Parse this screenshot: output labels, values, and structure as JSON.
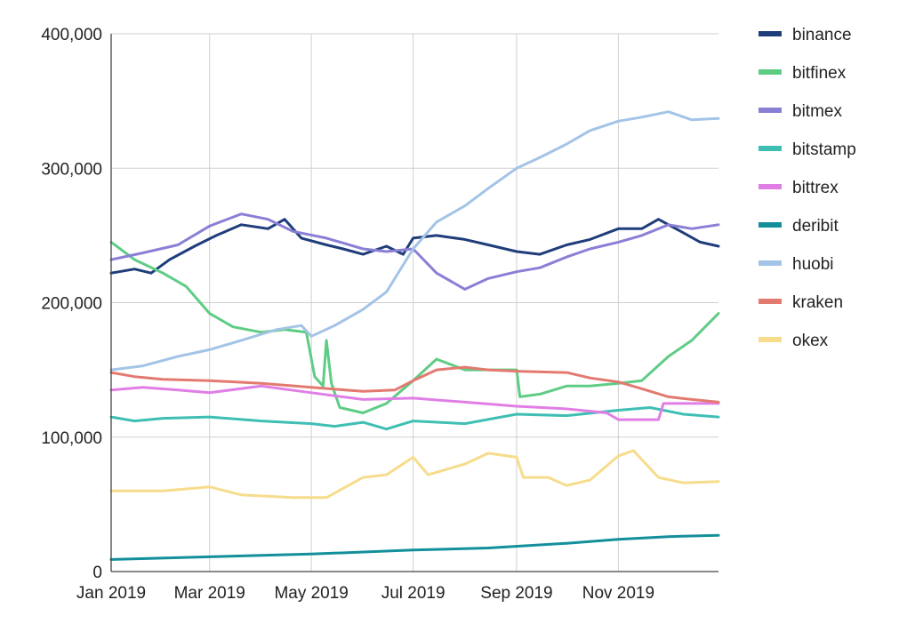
{
  "chart_data": {
    "type": "line",
    "title": "",
    "xlabel": "",
    "ylabel": "",
    "x_range": [
      "2019-01-01",
      "2019-12-31"
    ],
    "ylim": [
      0,
      400000
    ],
    "grid": true,
    "legend_position": "right",
    "x_ticks": [
      {
        "date": "2019-01-01",
        "label": "Jan 2019"
      },
      {
        "date": "2019-03-01",
        "label": "Mar 2019"
      },
      {
        "date": "2019-05-01",
        "label": "May 2019"
      },
      {
        "date": "2019-07-01",
        "label": "Jul 2019"
      },
      {
        "date": "2019-09-01",
        "label": "Sep 2019"
      },
      {
        "date": "2019-11-01",
        "label": "Nov 2019"
      }
    ],
    "y_ticks": [
      {
        "value": 0,
        "label": "0"
      },
      {
        "value": 100000,
        "label": "100,000"
      },
      {
        "value": 200000,
        "label": "200,000"
      },
      {
        "value": 300000,
        "label": "300,000"
      },
      {
        "value": 400000,
        "label": "400,000"
      }
    ],
    "series": [
      {
        "name": "binance",
        "color": "#1f3d7a",
        "points": [
          [
            "2019-01-01",
            222000
          ],
          [
            "2019-01-15",
            225000
          ],
          [
            "2019-01-25",
            222000
          ],
          [
            "2019-02-05",
            232000
          ],
          [
            "2019-02-20",
            242000
          ],
          [
            "2019-03-05",
            250000
          ],
          [
            "2019-03-20",
            258000
          ],
          [
            "2019-04-05",
            255000
          ],
          [
            "2019-04-15",
            262000
          ],
          [
            "2019-04-25",
            248000
          ],
          [
            "2019-05-10",
            243000
          ],
          [
            "2019-05-20",
            240000
          ],
          [
            "2019-06-01",
            236000
          ],
          [
            "2019-06-15",
            242000
          ],
          [
            "2019-06-25",
            236000
          ],
          [
            "2019-07-01",
            248000
          ],
          [
            "2019-07-15",
            250000
          ],
          [
            "2019-08-01",
            247000
          ],
          [
            "2019-08-15",
            243000
          ],
          [
            "2019-09-01",
            238000
          ],
          [
            "2019-09-15",
            236000
          ],
          [
            "2019-10-01",
            243000
          ],
          [
            "2019-10-15",
            247000
          ],
          [
            "2019-11-01",
            255000
          ],
          [
            "2019-11-15",
            255000
          ],
          [
            "2019-11-25",
            262000
          ],
          [
            "2019-12-10",
            252000
          ],
          [
            "2019-12-20",
            245000
          ],
          [
            "2019-12-31",
            242000
          ]
        ]
      },
      {
        "name": "bitfinex",
        "color": "#5fcc85",
        "points": [
          [
            "2019-01-01",
            245000
          ],
          [
            "2019-01-15",
            232000
          ],
          [
            "2019-02-01",
            222000
          ],
          [
            "2019-02-15",
            212000
          ],
          [
            "2019-03-01",
            192000
          ],
          [
            "2019-03-15",
            182000
          ],
          [
            "2019-04-01",
            178000
          ],
          [
            "2019-04-15",
            180000
          ],
          [
            "2019-04-28",
            178000
          ],
          [
            "2019-05-03",
            145000
          ],
          [
            "2019-05-08",
            138000
          ],
          [
            "2019-05-10",
            172000
          ],
          [
            "2019-05-13",
            140000
          ],
          [
            "2019-05-18",
            122000
          ],
          [
            "2019-06-01",
            118000
          ],
          [
            "2019-06-15",
            125000
          ],
          [
            "2019-07-01",
            142000
          ],
          [
            "2019-07-15",
            158000
          ],
          [
            "2019-08-01",
            150000
          ],
          [
            "2019-08-15",
            150000
          ],
          [
            "2019-09-01",
            150000
          ],
          [
            "2019-09-03",
            130000
          ],
          [
            "2019-09-15",
            132000
          ],
          [
            "2019-10-01",
            138000
          ],
          [
            "2019-10-15",
            138000
          ],
          [
            "2019-11-01",
            140000
          ],
          [
            "2019-11-15",
            142000
          ],
          [
            "2019-12-01",
            160000
          ],
          [
            "2019-12-15",
            172000
          ],
          [
            "2019-12-31",
            192000
          ]
        ]
      },
      {
        "name": "bitmex",
        "color": "#8a7fd6",
        "points": [
          [
            "2019-01-01",
            232000
          ],
          [
            "2019-01-20",
            237000
          ],
          [
            "2019-02-10",
            243000
          ],
          [
            "2019-03-01",
            257000
          ],
          [
            "2019-03-20",
            266000
          ],
          [
            "2019-04-05",
            262000
          ],
          [
            "2019-04-20",
            253000
          ],
          [
            "2019-05-10",
            248000
          ],
          [
            "2019-06-01",
            240000
          ],
          [
            "2019-06-15",
            238000
          ],
          [
            "2019-07-01",
            240000
          ],
          [
            "2019-07-15",
            222000
          ],
          [
            "2019-08-01",
            210000
          ],
          [
            "2019-08-15",
            218000
          ],
          [
            "2019-09-01",
            223000
          ],
          [
            "2019-09-15",
            226000
          ],
          [
            "2019-10-01",
            234000
          ],
          [
            "2019-10-15",
            240000
          ],
          [
            "2019-11-01",
            245000
          ],
          [
            "2019-11-15",
            250000
          ],
          [
            "2019-12-01",
            258000
          ],
          [
            "2019-12-15",
            255000
          ],
          [
            "2019-12-31",
            258000
          ]
        ]
      },
      {
        "name": "bitstamp",
        "color": "#3fbfb4",
        "points": [
          [
            "2019-01-01",
            115000
          ],
          [
            "2019-01-15",
            112000
          ],
          [
            "2019-02-01",
            114000
          ],
          [
            "2019-03-01",
            115000
          ],
          [
            "2019-04-01",
            112000
          ],
          [
            "2019-05-01",
            110000
          ],
          [
            "2019-05-15",
            108000
          ],
          [
            "2019-06-01",
            111000
          ],
          [
            "2019-06-15",
            106000
          ],
          [
            "2019-07-01",
            112000
          ],
          [
            "2019-08-01",
            110000
          ],
          [
            "2019-09-01",
            117000
          ],
          [
            "2019-10-01",
            116000
          ],
          [
            "2019-11-01",
            120000
          ],
          [
            "2019-11-20",
            122000
          ],
          [
            "2019-12-10",
            117000
          ],
          [
            "2019-12-31",
            115000
          ]
        ]
      },
      {
        "name": "bittrex",
        "color": "#e07ee6",
        "points": [
          [
            "2019-01-01",
            135000
          ],
          [
            "2019-01-20",
            137000
          ],
          [
            "2019-02-10",
            135000
          ],
          [
            "2019-03-01",
            133000
          ],
          [
            "2019-04-01",
            138000
          ],
          [
            "2019-05-01",
            133000
          ],
          [
            "2019-06-01",
            128000
          ],
          [
            "2019-07-01",
            129000
          ],
          [
            "2019-08-01",
            126000
          ],
          [
            "2019-09-01",
            123000
          ],
          [
            "2019-10-01",
            121000
          ],
          [
            "2019-10-25",
            118000
          ],
          [
            "2019-11-01",
            113000
          ],
          [
            "2019-11-25",
            113000
          ],
          [
            "2019-11-28",
            125000
          ],
          [
            "2019-12-31",
            125000
          ]
        ]
      },
      {
        "name": "deribit",
        "color": "#138f9c",
        "points": [
          [
            "2019-01-01",
            9000
          ],
          [
            "2019-03-01",
            11000
          ],
          [
            "2019-05-01",
            13000
          ],
          [
            "2019-07-01",
            16000
          ],
          [
            "2019-08-15",
            17500
          ],
          [
            "2019-10-01",
            21000
          ],
          [
            "2019-11-01",
            24000
          ],
          [
            "2019-12-01",
            26000
          ],
          [
            "2019-12-31",
            27000
          ]
        ]
      },
      {
        "name": "huobi",
        "color": "#a3c4e6",
        "points": [
          [
            "2019-01-01",
            150000
          ],
          [
            "2019-01-20",
            153000
          ],
          [
            "2019-02-10",
            160000
          ],
          [
            "2019-03-01",
            165000
          ],
          [
            "2019-03-20",
            172000
          ],
          [
            "2019-04-10",
            180000
          ],
          [
            "2019-04-25",
            183000
          ],
          [
            "2019-05-01",
            175000
          ],
          [
            "2019-05-15",
            183000
          ],
          [
            "2019-06-01",
            195000
          ],
          [
            "2019-06-15",
            208000
          ],
          [
            "2019-07-01",
            240000
          ],
          [
            "2019-07-15",
            260000
          ],
          [
            "2019-08-01",
            272000
          ],
          [
            "2019-08-15",
            285000
          ],
          [
            "2019-09-01",
            300000
          ],
          [
            "2019-09-15",
            308000
          ],
          [
            "2019-10-01",
            318000
          ],
          [
            "2019-10-15",
            328000
          ],
          [
            "2019-11-01",
            335000
          ],
          [
            "2019-11-15",
            338000
          ],
          [
            "2019-12-01",
            342000
          ],
          [
            "2019-12-15",
            336000
          ],
          [
            "2019-12-31",
            337000
          ]
        ]
      },
      {
        "name": "kraken",
        "color": "#e37a70",
        "points": [
          [
            "2019-01-01",
            148000
          ],
          [
            "2019-01-15",
            145000
          ],
          [
            "2019-02-01",
            143000
          ],
          [
            "2019-03-01",
            142000
          ],
          [
            "2019-04-01",
            140000
          ],
          [
            "2019-05-01",
            137000
          ],
          [
            "2019-06-01",
            134000
          ],
          [
            "2019-06-20",
            135000
          ],
          [
            "2019-07-01",
            142000
          ],
          [
            "2019-07-15",
            150000
          ],
          [
            "2019-08-01",
            152000
          ],
          [
            "2019-08-15",
            150000
          ],
          [
            "2019-09-01",
            149000
          ],
          [
            "2019-10-01",
            148000
          ],
          [
            "2019-10-15",
            144000
          ],
          [
            "2019-11-01",
            141000
          ],
          [
            "2019-11-15",
            136000
          ],
          [
            "2019-12-01",
            130000
          ],
          [
            "2019-12-15",
            128000
          ],
          [
            "2019-12-31",
            126000
          ]
        ]
      },
      {
        "name": "okex",
        "color": "#f7dc8c",
        "points": [
          [
            "2019-01-01",
            60000
          ],
          [
            "2019-02-01",
            60000
          ],
          [
            "2019-03-01",
            63000
          ],
          [
            "2019-03-20",
            57000
          ],
          [
            "2019-04-20",
            55000
          ],
          [
            "2019-05-10",
            55000
          ],
          [
            "2019-06-01",
            70000
          ],
          [
            "2019-06-15",
            72000
          ],
          [
            "2019-07-01",
            85000
          ],
          [
            "2019-07-10",
            72000
          ],
          [
            "2019-08-01",
            80000
          ],
          [
            "2019-08-15",
            88000
          ],
          [
            "2019-09-01",
            85000
          ],
          [
            "2019-09-05",
            70000
          ],
          [
            "2019-09-20",
            70000
          ],
          [
            "2019-10-01",
            64000
          ],
          [
            "2019-10-15",
            68000
          ],
          [
            "2019-11-01",
            86000
          ],
          [
            "2019-11-10",
            90000
          ],
          [
            "2019-11-25",
            70000
          ],
          [
            "2019-12-10",
            66000
          ],
          [
            "2019-12-31",
            67000
          ]
        ]
      }
    ]
  }
}
